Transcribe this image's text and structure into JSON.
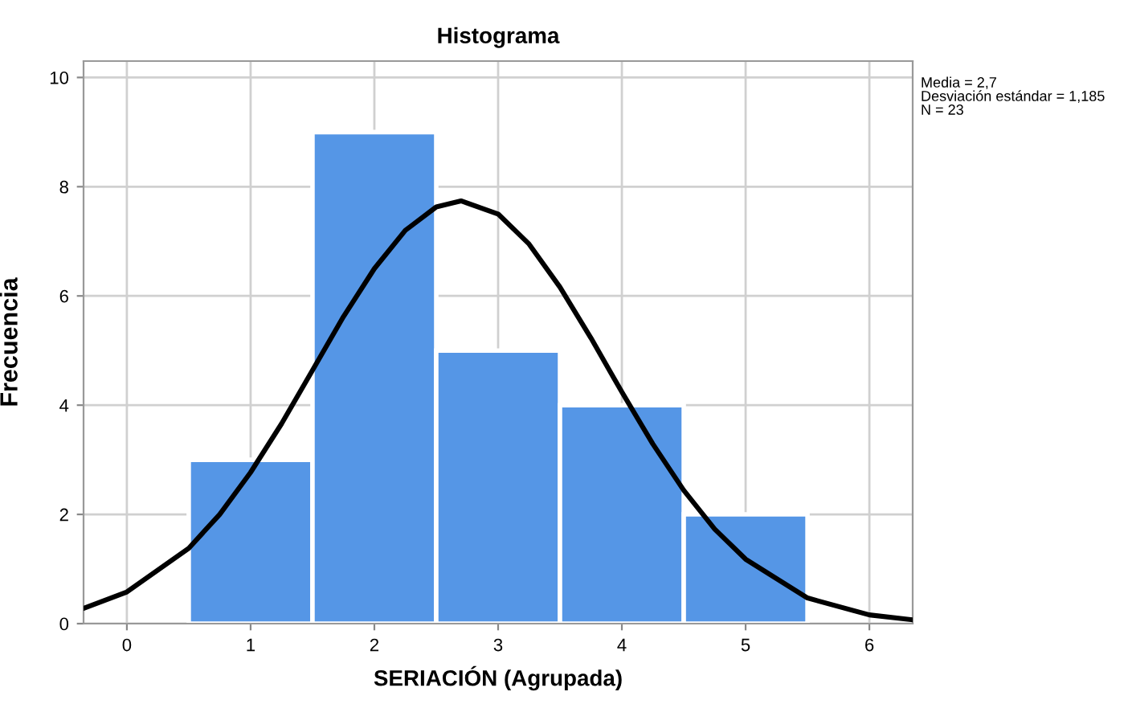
{
  "chart_data": {
    "type": "histogram",
    "title": "Histograma",
    "xlabel": "SERIACIÓN (Agrupada)",
    "ylabel": "Frecuencia",
    "series": [
      {
        "color": "#5596e6",
        "bins": [
          0.5,
          1.5,
          2.5,
          3.5,
          4.5,
          5.5
        ],
        "values": [
          3,
          9,
          5,
          4,
          2
        ]
      },
      {
        "type": "line",
        "color": "#000000",
        "x": [
          -0.35,
          0,
          0.5,
          0.75,
          1,
          1.25,
          1.5,
          1.75,
          2,
          2.25,
          2.5,
          2.7,
          3,
          3.25,
          3.5,
          3.75,
          4,
          4.25,
          4.5,
          4.75,
          5,
          5.5,
          6,
          6.35
        ],
        "values": [
          0.28,
          0.58,
          1.38,
          2.0,
          2.77,
          3.66,
          4.64,
          5.62,
          6.5,
          7.2,
          7.63,
          7.74,
          7.5,
          6.95,
          6.16,
          5.23,
          4.24,
          3.29,
          2.44,
          1.73,
          1.18,
          0.47,
          0.16,
          0.07
        ]
      }
    ],
    "xlim": [
      -0.35,
      6.35
    ],
    "ylim": [
      0,
      10.3
    ],
    "xticks": [
      0,
      1,
      2,
      3,
      4,
      5,
      6
    ],
    "yticks": [
      0,
      2,
      4,
      6,
      8,
      10
    ],
    "grid": true,
    "marker": "none",
    "line_style": "solid",
    "annotations": [
      "Media = 2,7",
      "Desviación estándar = 1,185",
      "N = 23"
    ]
  }
}
